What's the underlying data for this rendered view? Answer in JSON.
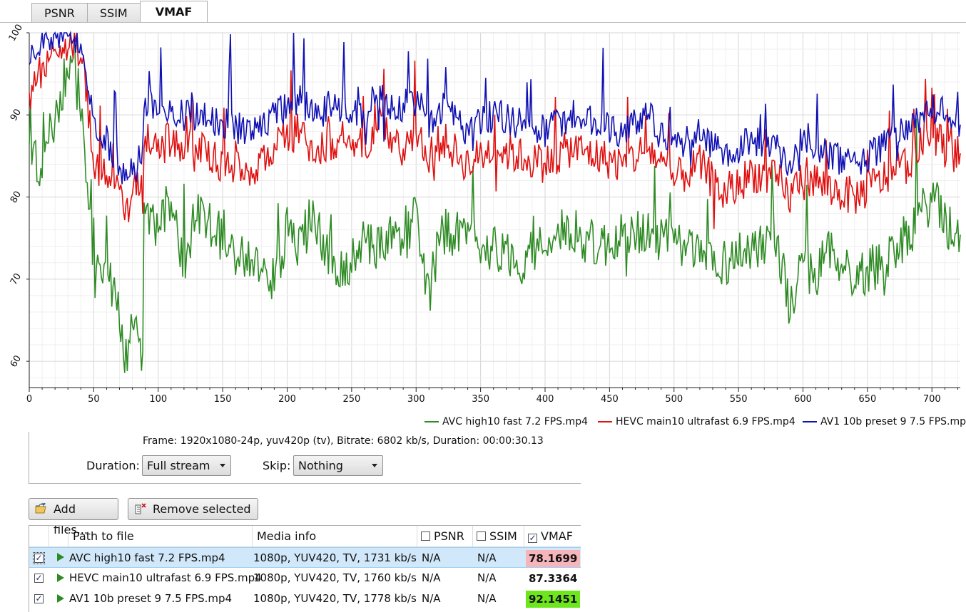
{
  "tabs": [
    {
      "label": "PSNR",
      "active": false
    },
    {
      "label": "SSIM",
      "active": false
    },
    {
      "label": "VMAF",
      "active": true
    }
  ],
  "chart_data": {
    "type": "line",
    "title": "",
    "xlabel": "",
    "ylabel": "",
    "xlim": [
      0,
      722
    ],
    "ylim": [
      56.8,
      100
    ],
    "x_ticks": [
      "0",
      "50",
      "100",
      "150",
      "200",
      "250",
      "300",
      "350",
      "400",
      "450",
      "500",
      "550",
      "600",
      "650",
      "700"
    ],
    "y_ticks": [
      "60",
      "70",
      "80",
      "90",
      "100"
    ],
    "grid": true,
    "legend_position": "bottom-right",
    "x_sample": [
      0,
      10,
      20,
      30,
      40,
      45,
      50,
      60,
      70,
      75,
      80,
      85,
      88,
      90,
      100,
      110,
      120,
      130,
      150,
      170,
      190,
      200,
      210,
      220,
      240,
      260,
      270,
      280,
      290,
      300,
      310,
      320,
      340,
      360,
      380,
      400,
      420,
      440,
      460,
      480,
      500,
      520,
      540,
      560,
      580,
      590,
      600,
      610,
      620,
      640,
      660,
      680,
      700,
      710,
      722
    ],
    "series": [
      {
        "name": "AVC high10 fast 7.2 FPS.mp4",
        "color": "#2e8b24",
        "values": [
          85,
          83,
          90,
          96,
          92,
          80,
          70,
          72,
          66,
          60,
          65,
          63,
          60,
          78,
          76,
          80,
          72,
          78,
          75,
          72,
          70,
          76,
          74,
          78,
          70,
          75,
          74,
          76,
          74,
          78,
          68,
          76,
          75,
          74,
          72,
          75,
          76,
          74,
          75,
          76,
          74,
          73,
          72,
          74,
          75,
          66,
          72,
          70,
          74,
          70,
          72,
          75,
          80,
          77,
          74
        ]
      },
      {
        "name": "HEVC main10 ultrafast 6.9 FPS.mp4",
        "color": "#e01010",
        "values": [
          92,
          96,
          98,
          99,
          97,
          92,
          84,
          83,
          81,
          78,
          80,
          82,
          80,
          88,
          86,
          87,
          85,
          86,
          84,
          83,
          86,
          87,
          88,
          86,
          87,
          86,
          90,
          87,
          86,
          88,
          85,
          87,
          84,
          86,
          85,
          84,
          86,
          85,
          84,
          86,
          82,
          84,
          80,
          83,
          82,
          80,
          83,
          82,
          81,
          80,
          82,
          84,
          88,
          86,
          85
        ]
      },
      {
        "name": "AV1 10b preset 9 7.5 FPS.mp4",
        "color": "#1010b4",
        "values": [
          96,
          99,
          100,
          100,
          98,
          95,
          88,
          87,
          84,
          82,
          83,
          84,
          86,
          92,
          90,
          91,
          90,
          90,
          89,
          88,
          90,
          91,
          92,
          90,
          91,
          90,
          93,
          91,
          90,
          92,
          89,
          91,
          88,
          90,
          89,
          88,
          90,
          89,
          88,
          90,
          86,
          88,
          85,
          87,
          86,
          84,
          87,
          86,
          85,
          84,
          86,
          88,
          91,
          90,
          89
        ]
      }
    ]
  },
  "info": {
    "frame_text": "Frame: 1920x1080-24p, yuv420p (tv), Bitrate: 6802 kb/s, Duration: 00:00:30.13",
    "duration_label": "Duration:",
    "duration_value": "Full stream",
    "skip_label": "Skip:",
    "skip_value": "Nothing"
  },
  "buttons": {
    "add_files": "Add files...",
    "remove_selected": "Remove selected"
  },
  "table": {
    "headers": {
      "path": "Path to file",
      "media": "Media info",
      "psnr": "PSNR",
      "ssim": "SSIM",
      "vmaf": "VMAF"
    },
    "header_checks": {
      "psnr": false,
      "ssim": false,
      "vmaf": true
    },
    "rows": [
      {
        "path": "AVC high10 fast 7.2 FPS.mp4",
        "media": "1080p, YUV420, TV, 1731 kb/s",
        "psnr": "N/A",
        "ssim": "N/A",
        "vmaf": "78.1699",
        "vmaf_bg": "#f5b5bb",
        "checked": true,
        "selected": true
      },
      {
        "path": "HEVC main10 ultrafast 6.9 FPS.mp4",
        "media": "1080p, YUV420, TV, 1760 kb/s",
        "psnr": "N/A",
        "ssim": "N/A",
        "vmaf": "87.3364",
        "vmaf_bg": "#ffffff",
        "checked": true,
        "selected": false
      },
      {
        "path": "AV1 10b preset 9 7.5 FPS.mp4",
        "media": "1080p, YUV420, TV, 1778 kb/s",
        "psnr": "N/A",
        "ssim": "N/A",
        "vmaf": "92.1451",
        "vmaf_bg": "#6ee61e",
        "checked": true,
        "selected": false
      }
    ]
  }
}
